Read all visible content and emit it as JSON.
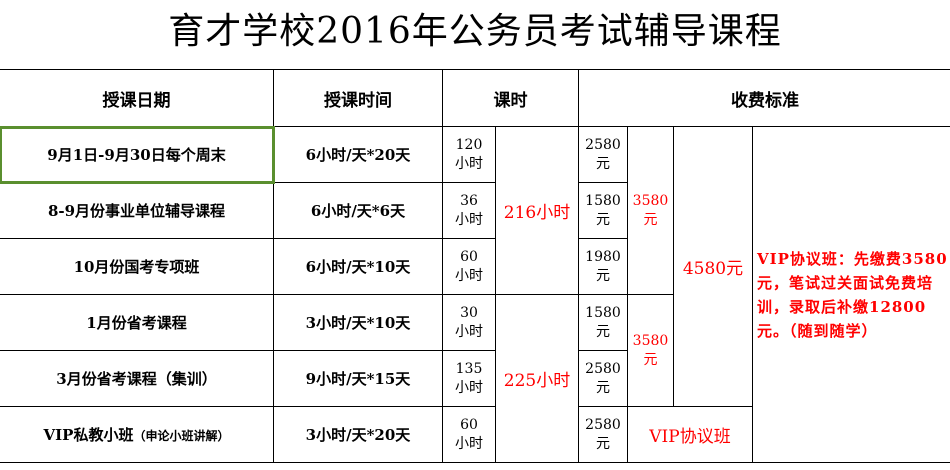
{
  "title": "育才学校2016年公务员考试辅导课程",
  "headers": {
    "date": "授课日期",
    "time": "授课时间",
    "hours": "课时",
    "fee": "收费标准"
  },
  "rows": [
    {
      "date": "9月1日-9月30日每个周末",
      "time": "6小时/天*20天",
      "hours": "120",
      "hours_unit": "小时",
      "fee": "2580",
      "fee_unit": "元"
    },
    {
      "date": "8-9月份事业单位辅导课程",
      "time": "6小时/天*6天",
      "hours": "36",
      "hours_unit": "小时",
      "fee": "1580",
      "fee_unit": "元"
    },
    {
      "date": "10月份国考专项班",
      "time": "6小时/天*10天",
      "hours": "60",
      "hours_unit": "小时",
      "fee": "1980",
      "fee_unit": "元"
    },
    {
      "date": "1月份省考课程",
      "time": "3小时/天*10天",
      "hours": "30",
      "hours_unit": "小时",
      "fee": "1580",
      "fee_unit": "元"
    },
    {
      "date": "3月份省考课程（集训）",
      "time": "9小时/天*15天",
      "hours": "135",
      "hours_unit": "小时",
      "fee": "2580",
      "fee_unit": "元"
    },
    {
      "date_main": "VIP私教小班",
      "date_sub": "（申论小班讲解）",
      "time": "3小时/天*20天",
      "hours": "60",
      "hours_unit": "小时",
      "fee": "2580",
      "fee_unit": "元"
    }
  ],
  "group_hours": [
    "216小时",
    "225小时"
  ],
  "group_fees": [
    {
      "amount": "3580",
      "unit": "元"
    },
    {
      "amount": "3580",
      "unit": "元"
    }
  ],
  "combined_fee": "4580元",
  "vip_label": "VIP协议班",
  "vip_note": "VIP协议班：先缴费3580元，笔试过关面试免费培训，录取后补缴12800元。（随到随学）",
  "colors": {
    "accent_red": "#ff0000",
    "selection": "#5a8f2e"
  }
}
